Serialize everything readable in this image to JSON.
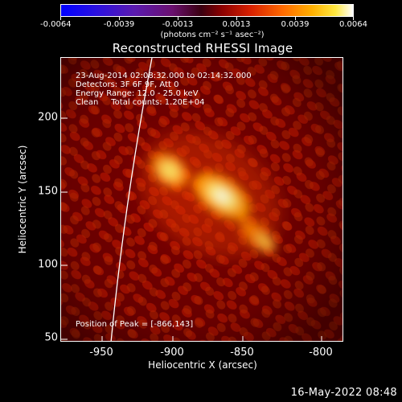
{
  "colorbar": {
    "ticks": [
      "-0.0064",
      "-0.0039",
      "-0.0013",
      "0.0013",
      "0.0039",
      "0.0064"
    ],
    "units": "(photons cm⁻² s⁻¹ asec⁻²)"
  },
  "title": "Reconstructed RHESSI Image",
  "info": {
    "time_range": "23-Aug-2014 02:08:32.000 to 02:14:32.000",
    "detectors": "Detectors: 3F 6F 9F, Att 0",
    "energy_range": "Energy Range: 12.0 - 25.0 keV",
    "clean": "Clean     Total counts: 1.20E+04",
    "peak": "Position of Peak = [-866,143]"
  },
  "axes": {
    "xlabel": "Heliocentric X (arcsec)",
    "ylabel": "Heliocentric Y (arcsec)",
    "x_ticks": [
      "-950",
      "-900",
      "-850",
      "-800"
    ],
    "y_ticks": [
      "200",
      "150",
      "100",
      "50"
    ]
  },
  "timestamp": "16-May-2022 08:48",
  "colors": {
    "background": "#000000",
    "text": "#ffffff",
    "limb_line": "#ffffff"
  },
  "image_data": {
    "colormap": "blue-purple-red-orange-yellow-white",
    "xlim": [
      -975,
      -790
    ],
    "ylim": [
      48,
      235
    ],
    "peak": [
      -866,
      143
    ]
  }
}
